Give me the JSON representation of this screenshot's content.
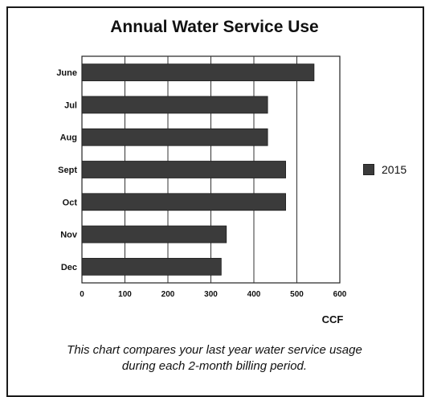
{
  "chart_data": {
    "type": "bar",
    "orientation": "horizontal",
    "title": "Annual Water Service Use",
    "categories": [
      "June",
      "Jul",
      "Aug",
      "Sept",
      "Oct",
      "Nov",
      "Dec"
    ],
    "series": [
      {
        "name": "2015",
        "values": [
          540,
          432,
          432,
          474,
          474,
          336,
          324
        ],
        "color": "#3b3b3b"
      }
    ],
    "xlabel": "CCF",
    "xlim": [
      0,
      600
    ],
    "xticks": [
      "0",
      "100",
      "200",
      "300",
      "400",
      "500",
      "600"
    ],
    "grid": true,
    "legend": "right"
  },
  "caption": {
    "line1": "This chart compares your last year water service usage",
    "line2": "during each 2-month billing period."
  }
}
